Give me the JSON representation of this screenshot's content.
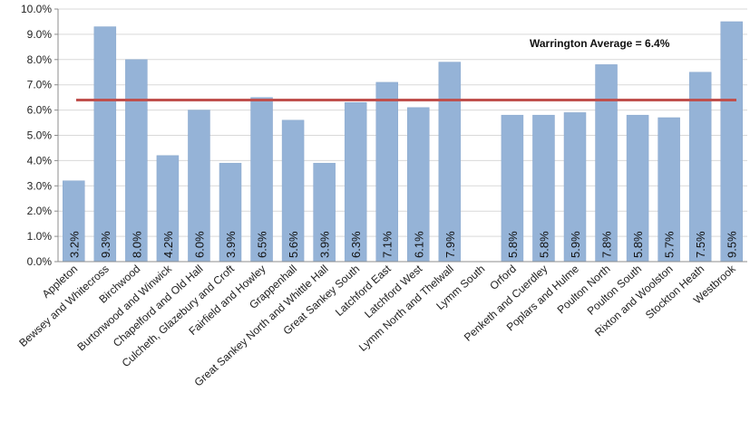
{
  "chart_data": {
    "type": "bar",
    "categories": [
      "Appleton",
      "Bewsey and Whitecross",
      "Birchwood",
      "Burtonwood and Winwick",
      "Chapelford and Old Hall",
      "Culcheth, Glazebury and Croft",
      "Fairfield and Howley",
      "Grappenhall",
      "Great Sankey North and Whittle Hall",
      "Great Sankey South",
      "Latchford East",
      "Latchford West",
      "Lymm North and Thelwall",
      "Lymm South",
      "Orford",
      "Penketh and Cuerdley",
      "Poplars and Hulme",
      "Poulton North",
      "Poulton South",
      "Rixton and Woolston",
      "Stockton Heath",
      "Westbrook"
    ],
    "values": [
      3.2,
      9.3,
      8.0,
      4.2,
      6.0,
      3.9,
      6.5,
      5.6,
      3.9,
      6.3,
      7.1,
      6.1,
      7.9,
      null,
      5.8,
      5.8,
      5.9,
      7.8,
      5.8,
      5.7,
      7.5,
      9.5
    ],
    "data_labels": [
      "3.2%",
      "9.3%",
      "8.0%",
      "4.2%",
      "6.0%",
      "3.9%",
      "6.5%",
      "5.6%",
      "3.9%",
      "6.3%",
      "7.1%",
      "6.1%",
      "7.9%",
      "",
      "5.8%",
      "5.8%",
      "5.9%",
      "7.8%",
      "5.8%",
      "5.7%",
      "7.5%",
      "9.5%"
    ],
    "y_ticks": [
      "0.0%",
      "1.0%",
      "2.0%",
      "3.0%",
      "4.0%",
      "5.0%",
      "6.0%",
      "7.0%",
      "8.0%",
      "9.0%",
      "10.0%"
    ],
    "ylim": [
      0,
      10
    ],
    "reference_line": {
      "value": 6.4,
      "label": "Warrington Average = 6.4%"
    },
    "title": "",
    "xlabel": "",
    "ylabel": "",
    "grid": true,
    "legend": "none",
    "colors": {
      "bar": "#95b3d7",
      "bar_edge": "#8aa8cd",
      "average_line": "#c0504d",
      "grid": "#d9d9d9"
    }
  }
}
